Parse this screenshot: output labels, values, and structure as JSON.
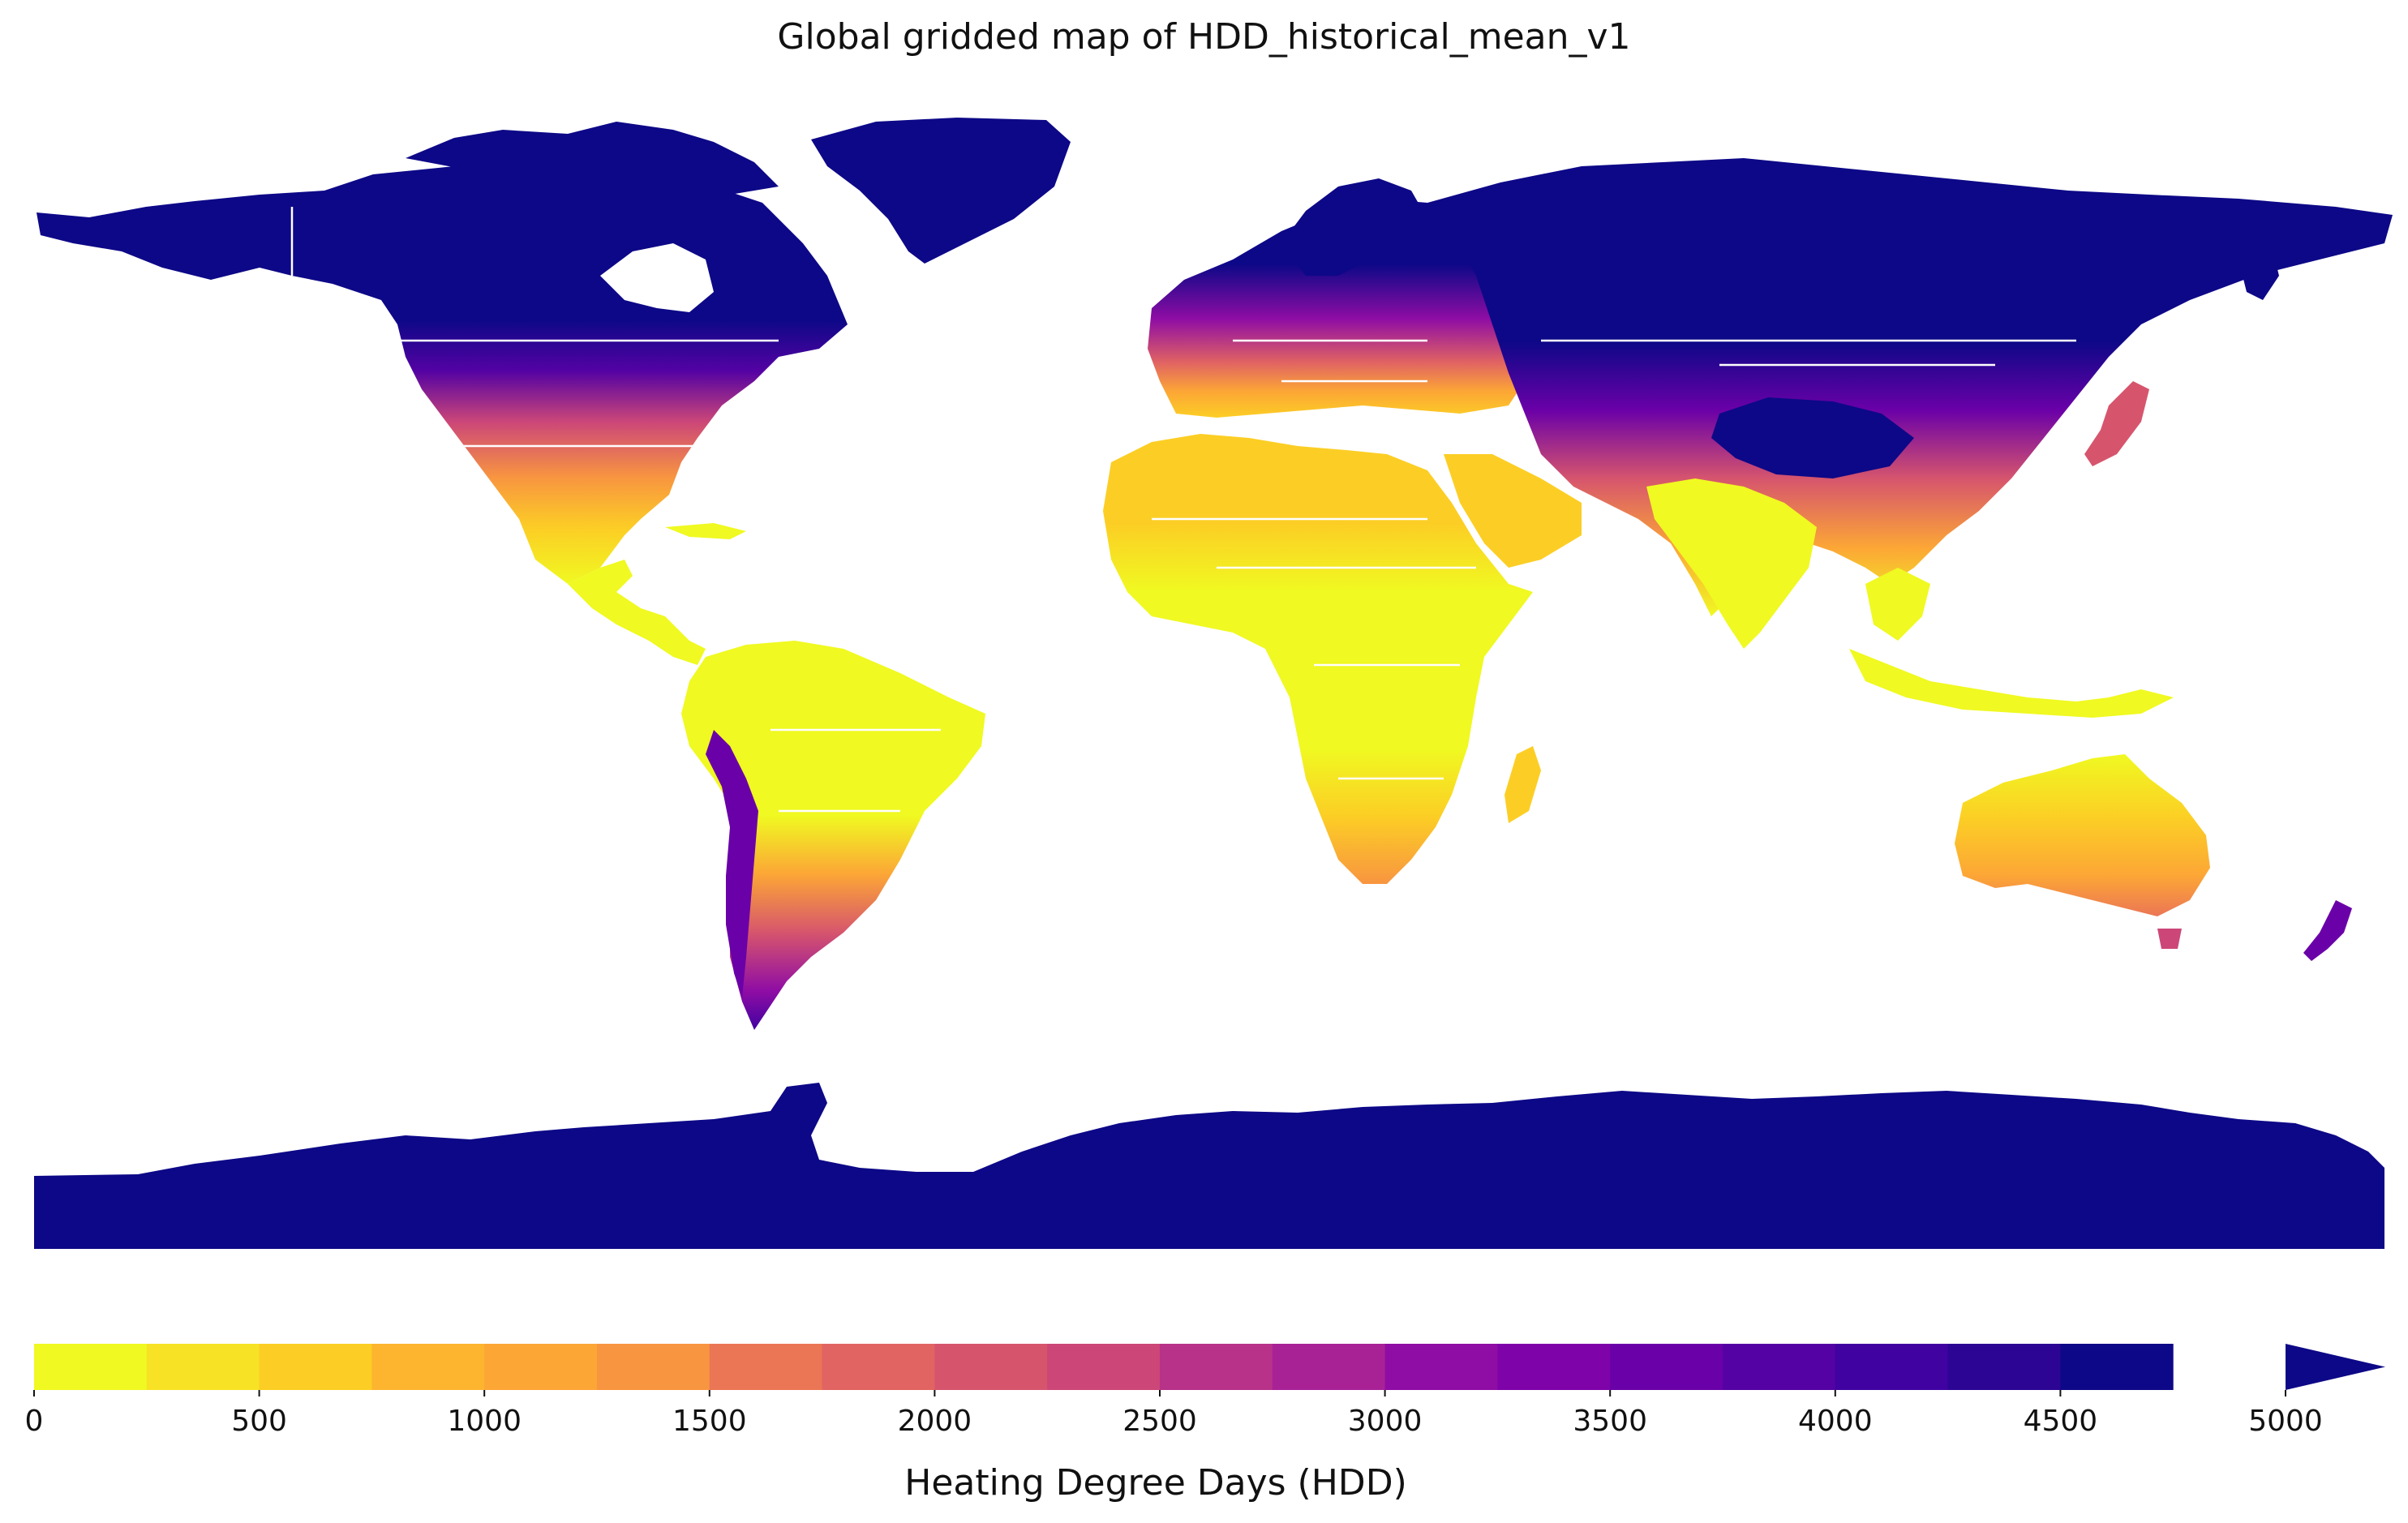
{
  "title": "Global gridded map of HDD_historical_mean_v1",
  "colorbar": {
    "label": "Heating Degree Days (HDD)",
    "min": 0,
    "max": 5000,
    "step": 250,
    "extend": "max",
    "ticks": [
      "0",
      "500",
      "1000",
      "1500",
      "2000",
      "2500",
      "3000",
      "3500",
      "4000",
      "4500",
      "5000"
    ],
    "colors": [
      "#f0f921",
      "#f7e225",
      "#fcce25",
      "#fdb42f",
      "#fca636",
      "#f89540",
      "#eb7655",
      "#e16462",
      "#d6556d",
      "#cc4778",
      "#b83289",
      "#a82296",
      "#8f0da4",
      "#7e03a8",
      "#6a00a8",
      "#5402a3",
      "#4002a1",
      "#2c0594",
      "#0d0887"
    ],
    "over_color": "#0d0887"
  },
  "map_colors": {
    "very_cold": "#0d0887",
    "cold": "#5402a3",
    "cool": "#b83289",
    "mild": "#f89540",
    "warm": "#fcce25",
    "hot": "#f0f921"
  }
}
